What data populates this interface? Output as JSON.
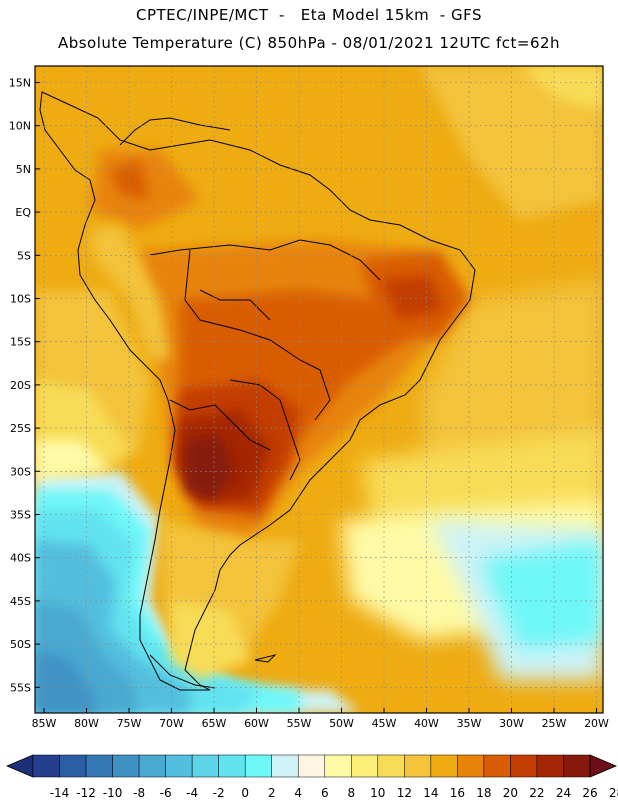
{
  "header": {
    "line1": "CPTEC/INPE/MCT  -   Eta Model 15km  - GFS",
    "line2": "Absolute Temperature (C) 850hPa - 08/01/2021 12UTC fct=62h"
  },
  "axes": {
    "lat_labels": [
      "15N",
      "10N",
      "5N",
      "EQ",
      "5S",
      "10S",
      "15S",
      "20S",
      "25S",
      "30S",
      "35S",
      "40S",
      "45S",
      "50S",
      "55S"
    ],
    "lon_labels": [
      "85W",
      "80W",
      "75W",
      "70W",
      "65W",
      "60W",
      "55W",
      "50W",
      "45W",
      "40W",
      "35W",
      "30W",
      "25W",
      "20W"
    ]
  },
  "colorbar": {
    "labels": [
      "-14",
      "-12",
      "-10",
      "-8",
      "-6",
      "-4",
      "-2",
      "0",
      "2",
      "4",
      "6",
      "8",
      "10",
      "12",
      "14",
      "16",
      "18",
      "20",
      "22",
      "24",
      "26",
      "28"
    ],
    "under_color": "#1b2f7a",
    "over_color": "#6e0d1a",
    "colors": [
      "#233f8e",
      "#2b5ea5",
      "#3479b4",
      "#3f93c4",
      "#4aa9d0",
      "#52bfde",
      "#5dd4e8",
      "#62e3f0",
      "#6ef7f7",
      "#cdf3f7",
      "#fdf6e0",
      "#fefaa6",
      "#fdf07a",
      "#f8dc57",
      "#f3c33a",
      "#eeab12",
      "#e8840c",
      "#d95d06",
      "#c23c05",
      "#a42705",
      "#861a0c"
    ]
  },
  "chart_data": {
    "type": "heatmap",
    "title": "Absolute Temperature (C) 850hPa - 08/01/2021 12UTC fct=62h",
    "model": "CPTEC/INPE/MCT Eta Model 15km - GFS",
    "variable": "Absolute Temperature (C)",
    "level": "850hPa",
    "units": "C",
    "lon_range": [
      -86,
      -19
    ],
    "lat_range": [
      17,
      -58
    ],
    "contour_levels": [
      -14,
      -12,
      -10,
      -8,
      -6,
      -4,
      -2,
      0,
      2,
      4,
      6,
      8,
      10,
      12,
      14,
      16,
      18,
      20,
      22,
      24,
      26,
      28
    ],
    "grid": true
  }
}
